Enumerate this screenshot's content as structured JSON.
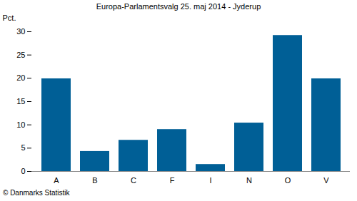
{
  "chart_data": {
    "type": "bar",
    "title": "Europa-Parlamentsvalg 25. maj 2014 - Jyderup",
    "y_label": "Pct.",
    "caption": "© Danmarks Statistik",
    "categories": [
      "A",
      "B",
      "C",
      "F",
      "I",
      "N",
      "O",
      "V"
    ],
    "values": [
      19.9,
      4.3,
      6.7,
      9.0,
      1.5,
      10.4,
      29.2,
      19.9
    ],
    "color": "#005f96",
    "ylim": [
      0,
      30
    ],
    "yticks": [
      0,
      5,
      10,
      15,
      20,
      25,
      30
    ],
    "grid": false
  }
}
